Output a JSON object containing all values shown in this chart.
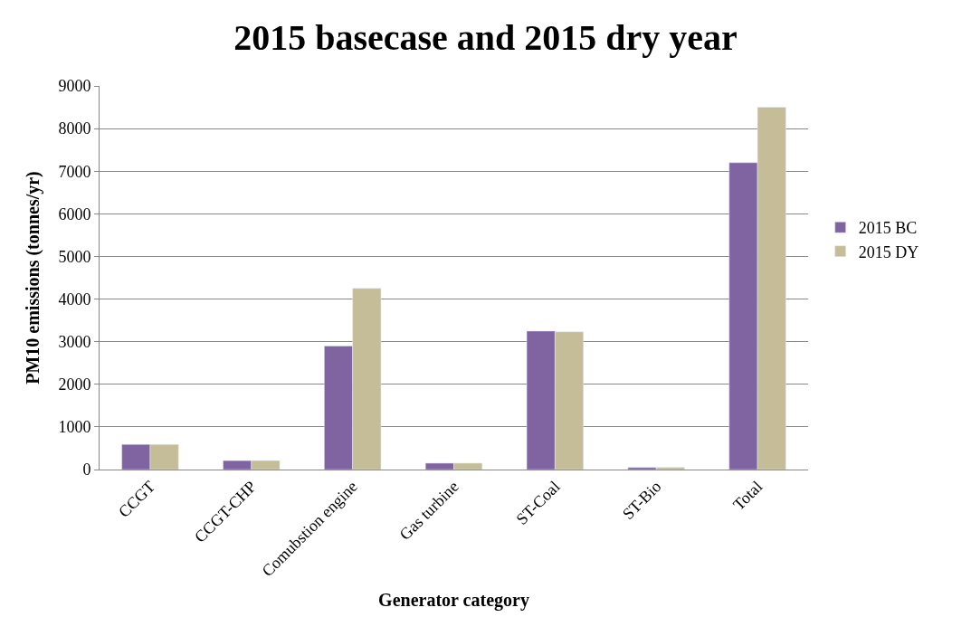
{
  "chart_data": {
    "type": "bar",
    "title": "2015 basecase and 2015 dry year",
    "xlabel": "Generator category",
    "ylabel": "PM10 emissions (tonnes/yr)",
    "categories": [
      "CCGT",
      "CCGT-CHP",
      "Comubstion engine",
      "Gas turbine",
      "ST-Coal",
      "ST-Bio",
      "Total"
    ],
    "series": [
      {
        "name": "2015 BC",
        "color": "#8064a2",
        "values": [
          590,
          210,
          2900,
          150,
          3250,
          50,
          7200
        ]
      },
      {
        "name": "2015 DY",
        "color": "#c4bd97",
        "values": [
          590,
          210,
          4250,
          150,
          3230,
          50,
          8500
        ]
      }
    ],
    "ylim": [
      0,
      9000
    ],
    "yticks": [
      0,
      1000,
      2000,
      3000,
      4000,
      5000,
      6000,
      7000,
      8000,
      9000
    ],
    "grid": "y",
    "legend": "right"
  }
}
